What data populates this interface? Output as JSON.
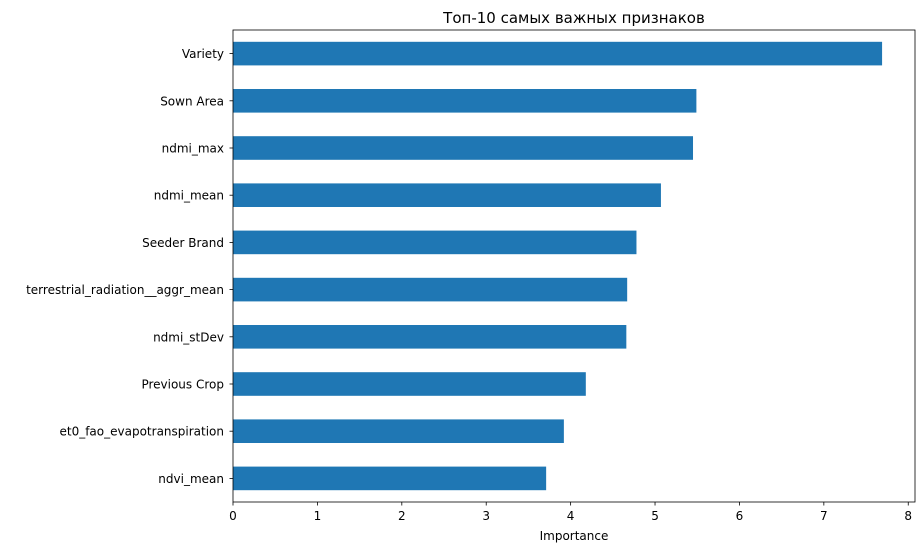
{
  "chart_data": {
    "type": "bar",
    "orientation": "horizontal",
    "title": "Топ-10 самых важных признаков",
    "xlabel": "Importance",
    "ylabel": "",
    "xlim": [
      0,
      8.08
    ],
    "xticks": [
      0,
      1,
      2,
      3,
      4,
      5,
      6,
      7,
      8
    ],
    "grid": false,
    "legend": "none",
    "bar_color": "#1f77b4",
    "categories": [
      "Variety",
      "Sown Area",
      "ndmi_max",
      "ndmi_mean",
      "Seeder Brand",
      "terrestrial_radiation__aggr_mean",
      "ndmi_stDev",
      "Previous Crop",
      "et0_fao_evapotranspiration",
      "ndvi_mean"
    ],
    "values": [
      7.69,
      5.49,
      5.45,
      5.07,
      4.78,
      4.67,
      4.66,
      4.18,
      3.92,
      3.71
    ]
  }
}
